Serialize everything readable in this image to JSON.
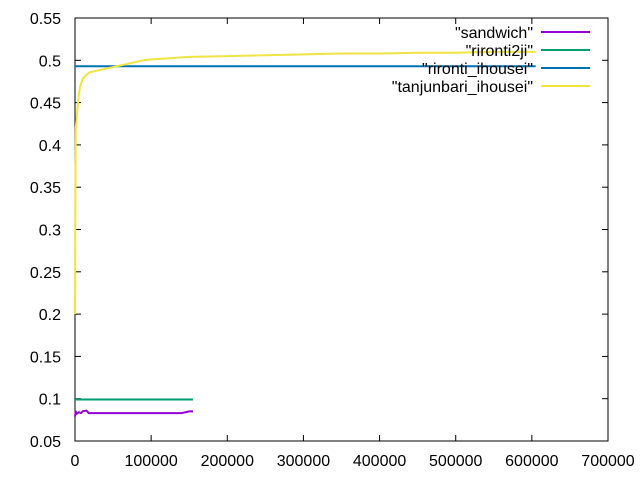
{
  "chart_data": {
    "type": "line",
    "title": "",
    "xlabel": "",
    "ylabel": "",
    "xlim": [
      0,
      700000
    ],
    "ylim": [
      0.05,
      0.55
    ],
    "xticks": [
      0,
      100000,
      200000,
      300000,
      400000,
      500000,
      600000,
      700000
    ],
    "xtick_labels": [
      "0",
      "100000",
      "200000",
      "300000",
      "400000",
      "500000",
      "600000",
      "700000"
    ],
    "yticks": [
      0.05,
      0.1,
      0.15,
      0.2,
      0.25,
      0.3,
      0.35,
      0.4,
      0.45,
      0.5,
      0.55
    ],
    "ytick_labels": [
      "0.05",
      "0.1",
      "0.15",
      "0.2",
      "0.25",
      "0.3",
      "0.35",
      "0.4",
      "0.45",
      "0.5",
      "0.55"
    ],
    "grid": false,
    "legend_position": "top-right",
    "series": [
      {
        "name": "\"sandwich\"",
        "color": "#9400d3",
        "x": [
          0,
          1000,
          2000,
          5000,
          8000,
          10000,
          15000,
          18000,
          20000,
          50000,
          100000,
          140000,
          145000,
          150000,
          155000
        ],
        "y": [
          0.079,
          0.085,
          0.082,
          0.084,
          0.083,
          0.085,
          0.086,
          0.083,
          0.083,
          0.083,
          0.083,
          0.083,
          0.084,
          0.085,
          0.085
        ]
      },
      {
        "name": "\"rironti2ji\"",
        "color": "#009e73",
        "x": [
          0,
          155000
        ],
        "y": [
          0.099,
          0.099
        ]
      },
      {
        "name": "\"rironti_ihousei\"",
        "color": "#0072b2",
        "x": [
          0,
          605000
        ],
        "y": [
          0.493,
          0.493
        ]
      },
      {
        "name": "\"tanjunbari_ihousei\"",
        "color": "#f0e442",
        "x": [
          0,
          500,
          1000,
          2000,
          3000,
          5000,
          7000,
          10000,
          15000,
          20000,
          30000,
          40000,
          50000,
          60000,
          70000,
          80000,
          90000,
          100000,
          150000,
          200000,
          250000,
          300000,
          350000,
          400000,
          450000,
          500000,
          550000,
          605000
        ],
        "y": [
          0.2,
          0.35,
          0.42,
          0.43,
          0.44,
          0.46,
          0.47,
          0.478,
          0.483,
          0.486,
          0.488,
          0.49,
          0.492,
          0.494,
          0.496,
          0.498,
          0.5,
          0.501,
          0.504,
          0.505,
          0.506,
          0.507,
          0.508,
          0.508,
          0.509,
          0.509,
          0.51,
          0.51
        ]
      }
    ]
  }
}
